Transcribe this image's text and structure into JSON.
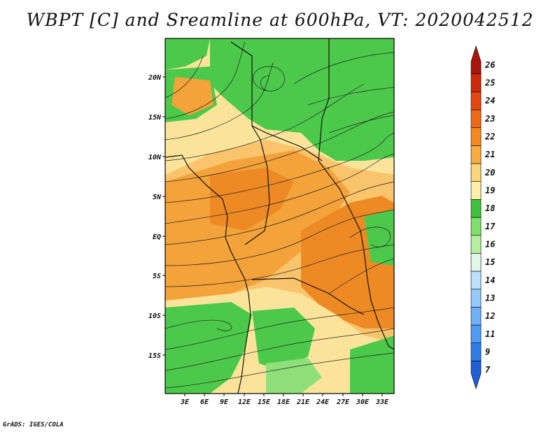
{
  "title": "WBPT [C] and Sreamline at 600hPa, VT: 2020042512",
  "footer": "GrADS: IGES/COLA",
  "axes": {
    "lat_ticks": [
      "20N",
      "15N",
      "10N",
      "5N",
      "EQ",
      "5S",
      "10S",
      "15S"
    ],
    "lon_ticks": [
      "3E",
      "6E",
      "9E",
      "12E",
      "15E",
      "18E",
      "21E",
      "24E",
      "27E",
      "30E",
      "33E"
    ]
  },
  "colorbar": {
    "labels": [
      "7",
      "9",
      "11",
      "12",
      "13",
      "14",
      "15",
      "16",
      "17",
      "18",
      "19",
      "20",
      "21",
      "22",
      "23",
      "24",
      "25",
      "26"
    ],
    "colors": [
      "#1f5fd6",
      "#2f7ee8",
      "#4f9af2",
      "#6fb1f7",
      "#95c8fb",
      "#bfe0fd",
      "#e2f6e8",
      "#b4ef9f",
      "#7fe06b",
      "#3fc23f",
      "#fff0a8",
      "#fbd57a",
      "#f8ac3f",
      "#f48a1d",
      "#ef6a14",
      "#e6460f",
      "#cf2a0c",
      "#a9150a"
    ]
  },
  "palette": {
    "green": "#4cc94a",
    "light_green": "#8fe07a",
    "yellow": "#fbe49a",
    "light_orange": "#f9c46b",
    "orange": "#f4a23a",
    "dark_orange": "#ee8a24"
  }
}
